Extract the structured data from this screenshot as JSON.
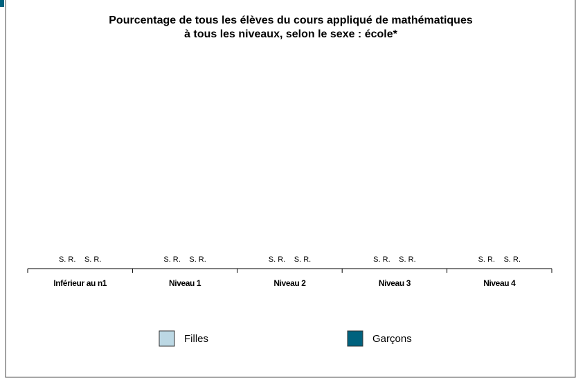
{
  "chart_data": {
    "type": "bar",
    "title": [
      "Pourcentage de tous les élèves du cours appliqué de mathématiques",
      "à tous les niveaux, selon le sexe : école*"
    ],
    "categories": [
      "Inférieur au n1",
      "Niveau 1",
      "Niveau 2",
      "Niveau 3",
      "Niveau 4"
    ],
    "series": [
      {
        "name": "Filles",
        "color": "#bcd8e4",
        "values": [
          null,
          null,
          null,
          null,
          null
        ],
        "value_labels": [
          "S. R.",
          "S. R.",
          "S. R.",
          "S. R.",
          "S. R."
        ]
      },
      {
        "name": "Garçons",
        "color": "#00627e",
        "values": [
          null,
          null,
          null,
          null,
          null
        ],
        "value_labels": [
          "S. R.",
          "S. R.",
          "S. R.",
          "S. R.",
          "S. R."
        ]
      }
    ],
    "legend": "bottom"
  }
}
